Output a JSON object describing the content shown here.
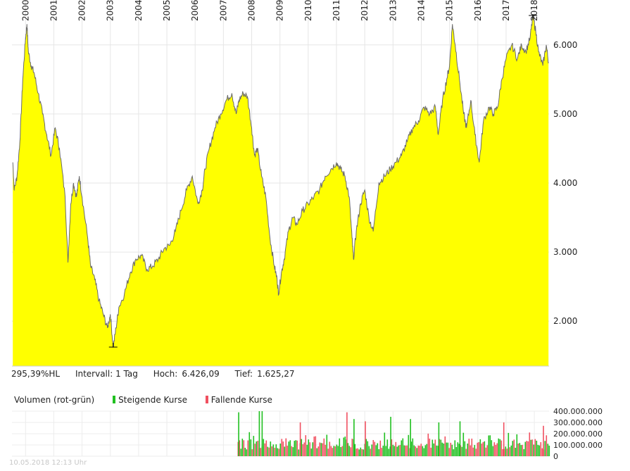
{
  "chart_data": {
    "type": "area",
    "x_tick_labels": [
      "2000",
      "2001",
      "2002",
      "2003",
      "2004",
      "2005",
      "2006",
      "2007",
      "2008",
      "2009",
      "2010",
      "2011",
      "2012",
      "2013",
      "2014",
      "2015",
      "2016",
      "2017",
      "2018"
    ],
    "y_tick_labels": [
      "2.000",
      "3.000",
      "4.000",
      "5.000",
      "6.000"
    ],
    "y_ticks": [
      2000,
      3000,
      4000,
      5000,
      6000
    ],
    "ylim": [
      1350,
      6650
    ],
    "xlim": [
      1999.52,
      2018.52
    ],
    "grid": true,
    "colors": {
      "fill": "#ffff00",
      "line": "#6b6b6b",
      "rising": "#20c020",
      "falling": "#f05060"
    },
    "series": [
      {
        "x": [
          1999.55,
          1999.6,
          1999.7,
          1999.8,
          1999.9,
          2000.0,
          2000.05,
          2000.1,
          2000.2,
          2000.3,
          2000.45,
          2000.6,
          2000.75,
          2000.9,
          2001.05,
          2001.2,
          2001.4,
          2001.5,
          2001.6,
          2001.7,
          2001.8,
          2001.9,
          2002.0,
          2002.2,
          2002.3,
          2002.45,
          2002.6,
          2002.75,
          2002.9,
          2003.0,
          2003.1,
          2003.2,
          2003.3,
          2003.5,
          2003.7,
          2003.9,
          2004.1,
          2004.3,
          2004.5,
          2004.7,
          2004.9,
          2005.1,
          2005.3,
          2005.5,
          2005.7,
          2005.9,
          2006.1,
          2006.25,
          2006.35,
          2006.5,
          2006.7,
          2006.9,
          2007.1,
          2007.3,
          2007.45,
          2007.55,
          2007.7,
          2007.85,
          2008.0,
          2008.1,
          2008.2,
          2008.35,
          2008.5,
          2008.65,
          2008.8,
          2008.9,
          2008.95,
          2009.05,
          2009.15,
          2009.3,
          2009.45,
          2009.6,
          2009.8,
          2010.0,
          2010.2,
          2010.4,
          2010.6,
          2010.8,
          2011.0,
          2011.15,
          2011.3,
          2011.45,
          2011.55,
          2011.6,
          2011.7,
          2011.85,
          2012.0,
          2012.15,
          2012.3,
          2012.5,
          2012.7,
          2012.9,
          2013.1,
          2013.3,
          2013.5,
          2013.7,
          2013.9,
          2014.1,
          2014.3,
          2014.5,
          2014.6,
          2014.75,
          2014.9,
          2015.0,
          2015.1,
          2015.2,
          2015.35,
          2015.5,
          2015.6,
          2015.75,
          2015.9,
          2016.05,
          2016.2,
          2016.4,
          2016.55,
          2016.7,
          2016.85,
          2017.0,
          2017.2,
          2017.4,
          2017.55,
          2017.7,
          2017.85,
          2017.95,
          2018.05,
          2018.15,
          2018.3,
          2018.42,
          2018.5
        ],
        "y": [
          4300,
          3900,
          4100,
          4600,
          5500,
          6100,
          6300,
          5900,
          5700,
          5600,
          5300,
          5000,
          4700,
          4400,
          4800,
          4500,
          3800,
          2850,
          3700,
          4000,
          3800,
          4100,
          3800,
          3200,
          2800,
          2600,
          2300,
          2100,
          1900,
          2100,
          1625,
          1900,
          2200,
          2400,
          2700,
          2900,
          2950,
          2750,
          2800,
          2900,
          3050,
          3100,
          3300,
          3600,
          3900,
          4100,
          3700,
          3900,
          4200,
          4500,
          4800,
          5000,
          5200,
          5300,
          5000,
          5200,
          5300,
          5250,
          4800,
          4400,
          4500,
          4100,
          3800,
          3200,
          2800,
          2600,
          2400,
          2700,
          2900,
          3300,
          3500,
          3400,
          3600,
          3700,
          3800,
          3900,
          4100,
          4200,
          4300,
          4200,
          4100,
          3800,
          3200,
          2900,
          3300,
          3700,
          3900,
          3500,
          3300,
          4000,
          4100,
          4200,
          4300,
          4400,
          4600,
          4800,
          4900,
          5100,
          5000,
          5100,
          4700,
          5200,
          5500,
          5700,
          6300,
          6000,
          5500,
          5000,
          4800,
          5200,
          4700,
          4300,
          4900,
          5100,
          5000,
          5100,
          5500,
          5800,
          6000,
          5800,
          6000,
          5900,
          6100,
          6426,
          6200,
          5900,
          5700,
          6000,
          5750
        ],
        "high": {
          "x": 2017.95,
          "y": 6426.09
        },
        "low": {
          "x": 2003.1,
          "y": 1625.27
        }
      }
    ],
    "stats": {
      "change": "295,39%HL",
      "interval": "Intervall: 1 Tag",
      "high_label": "Hoch:",
      "high_value": "6.426,09",
      "low_label": "Tief:",
      "low_value": "1.625,27"
    },
    "volume": {
      "title": "Volumen (rot-grün)",
      "legend_rising": "Steigende Kurse",
      "legend_falling": "Fallende Kurse",
      "y_tick_labels": [
        "0",
        "100.000.000",
        "200.000.000",
        "300.000.000",
        "400.000.000"
      ],
      "y_ticks": [
        0,
        100000000,
        200000000,
        300000000,
        400000000
      ],
      "ylim": [
        0,
        400000000
      ],
      "start_x": 2007.5,
      "typical_range": [
        60000000,
        160000000
      ],
      "peaks": [
        {
          "x": 2007.52,
          "value": 390000000,
          "dir": "up"
        },
        {
          "x": 2008.25,
          "value": 400000000,
          "dir": "up"
        },
        {
          "x": 2008.35,
          "value": 400000000,
          "dir": "up"
        },
        {
          "x": 2009.7,
          "value": 300000000,
          "dir": "down"
        },
        {
          "x": 2011.35,
          "value": 390000000,
          "dir": "down"
        },
        {
          "x": 2011.6,
          "value": 330000000,
          "dir": "up"
        },
        {
          "x": 2012.0,
          "value": 310000000,
          "dir": "down"
        },
        {
          "x": 2012.9,
          "value": 350000000,
          "dir": "up"
        },
        {
          "x": 2013.6,
          "value": 330000000,
          "dir": "up"
        },
        {
          "x": 2014.6,
          "value": 300000000,
          "dir": "up"
        },
        {
          "x": 2015.35,
          "value": 310000000,
          "dir": "up"
        },
        {
          "x": 2016.9,
          "value": 300000000,
          "dir": "down"
        },
        {
          "x": 2018.3,
          "value": 270000000,
          "dir": "down"
        }
      ]
    }
  },
  "footer": "10.05.2018 12:13 Uhr"
}
